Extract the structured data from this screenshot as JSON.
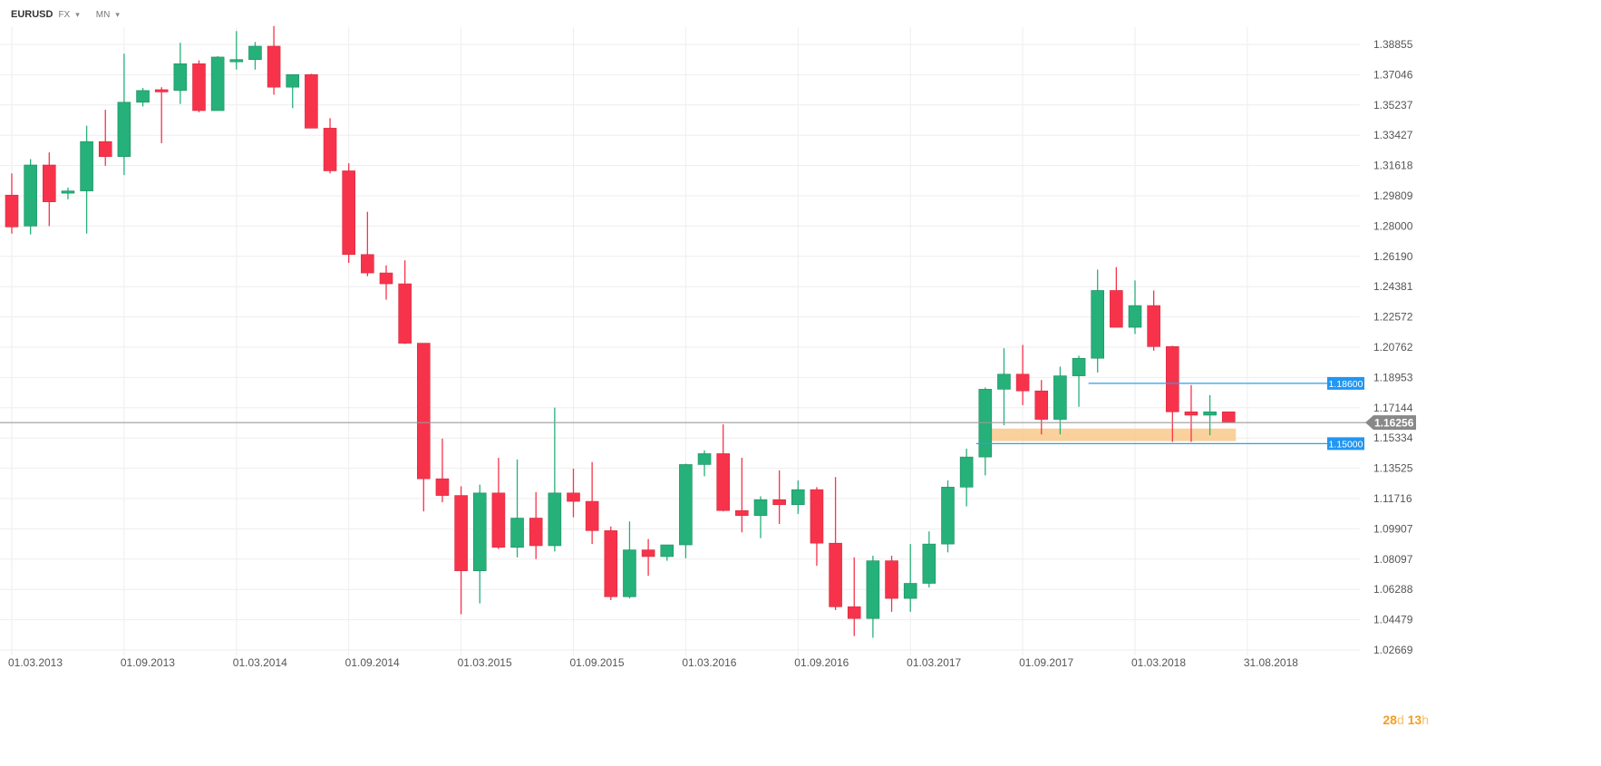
{
  "toolbar": {
    "symbol": "EURUSD",
    "market": "FX",
    "interval": "MN"
  },
  "countdown": {
    "days": "28",
    "days_unit": "d",
    "hours": "13",
    "hours_unit": "h"
  },
  "colors": {
    "up": "#26b07a",
    "down": "#f7334b",
    "grid": "#eeeeee",
    "level_line": "#2e9fe8",
    "level_label_bg": "#2196f3",
    "current_price_line": "#9a9a9a",
    "current_price_bg": "#888888",
    "zone_fill": "#f9c98b"
  },
  "chart_data": {
    "type": "candlestick",
    "ylim": [
      1.0267,
      1.4035
    ],
    "y_ticks": [
      "1.38855",
      "1.37046",
      "1.35237",
      "1.33427",
      "1.31618",
      "1.29809",
      "1.28000",
      "1.26190",
      "1.24381",
      "1.22572",
      "1.20762",
      "1.18953",
      "1.17144",
      "1.15334",
      "1.13525",
      "1.11716",
      "1.09907",
      "1.08097",
      "1.06288",
      "1.04479",
      "1.02669"
    ],
    "x_labels": [
      {
        "label": "01.03.2013",
        "index": 0
      },
      {
        "label": "01.09.2013",
        "index": 6
      },
      {
        "label": "01.03.2014",
        "index": 12
      },
      {
        "label": "01.09.2014",
        "index": 18
      },
      {
        "label": "01.03.2015",
        "index": 24
      },
      {
        "label": "01.09.2015",
        "index": 30
      },
      {
        "label": "01.03.2016",
        "index": 36
      },
      {
        "label": "01.09.2016",
        "index": 42
      },
      {
        "label": "01.03.2017",
        "index": 48
      },
      {
        "label": "01.09.2017",
        "index": 54
      },
      {
        "label": "01.03.2018",
        "index": 60
      },
      {
        "label": "31.08.2018",
        "index": 66
      }
    ],
    "ohlc": [
      [
        1.2985,
        1.3115,
        1.2755,
        1.2795
      ],
      [
        1.28,
        1.32,
        1.275,
        1.3165
      ],
      [
        1.3165,
        1.324,
        1.28,
        1.2945
      ],
      [
        1.3,
        1.303,
        1.296,
        1.301
      ],
      [
        1.301,
        1.34,
        1.2755,
        1.3305
      ],
      [
        1.3305,
        1.3495,
        1.316,
        1.3215
      ],
      [
        1.3215,
        1.383,
        1.3105,
        1.354
      ],
      [
        1.354,
        1.3625,
        1.3515,
        1.361
      ],
      [
        1.3615,
        1.363,
        1.3295,
        1.361
      ],
      [
        1.361,
        1.3895,
        1.353,
        1.377
      ],
      [
        1.377,
        1.379,
        1.348,
        1.349
      ],
      [
        1.349,
        1.3815,
        1.3495,
        1.381
      ],
      [
        1.379,
        1.3965,
        1.3735,
        1.3795
      ],
      [
        1.3795,
        1.39,
        1.3735,
        1.3875
      ],
      [
        1.3875,
        1.3995,
        1.3585,
        1.363
      ],
      [
        1.363,
        1.3705,
        1.3505,
        1.3705
      ],
      [
        1.3705,
        1.371,
        1.3385,
        1.3385
      ],
      [
        1.3385,
        1.3445,
        1.3115,
        1.313
      ],
      [
        1.313,
        1.3175,
        1.258,
        1.263
      ],
      [
        1.263,
        1.2885,
        1.25,
        1.252
      ],
      [
        1.252,
        1.2565,
        1.236,
        1.2455
      ],
      [
        1.2455,
        1.2595,
        1.2095,
        1.21
      ],
      [
        1.21,
        1.21,
        1.1095,
        1.129
      ],
      [
        1.129,
        1.153,
        1.115,
        1.119
      ],
      [
        1.119,
        1.1245,
        1.048,
        1.074
      ],
      [
        1.074,
        1.1255,
        1.0545,
        1.1205
      ],
      [
        1.1205,
        1.1415,
        1.087,
        1.088
      ],
      [
        1.088,
        1.1405,
        1.082,
        1.1055
      ],
      [
        1.1055,
        1.121,
        1.081,
        1.089
      ],
      [
        1.089,
        1.1715,
        1.0855,
        1.1205
      ],
      [
        1.1205,
        1.135,
        1.106,
        1.1155
      ],
      [
        1.1155,
        1.139,
        1.09,
        1.098
      ],
      [
        1.098,
        1.1005,
        1.0565,
        1.0585
      ],
      [
        1.0585,
        1.1035,
        1.0575,
        1.0865
      ],
      [
        1.0865,
        1.093,
        1.071,
        1.0825
      ],
      [
        1.0825,
        1.0895,
        1.08,
        1.0895
      ],
      [
        1.0895,
        1.138,
        1.0815,
        1.1375
      ],
      [
        1.1375,
        1.146,
        1.1305,
        1.144
      ],
      [
        1.144,
        1.1615,
        1.1095,
        1.11
      ],
      [
        1.11,
        1.1415,
        1.097,
        1.107
      ],
      [
        1.107,
        1.1185,
        1.0935,
        1.1165
      ],
      [
        1.1165,
        1.134,
        1.102,
        1.1135
      ],
      [
        1.1135,
        1.128,
        1.108,
        1.1225
      ],
      [
        1.1225,
        1.124,
        1.077,
        1.0905
      ],
      [
        1.0905,
        1.13,
        1.0505,
        1.0525
      ],
      [
        1.0525,
        1.082,
        1.035,
        1.0455
      ],
      [
        1.0455,
        1.083,
        1.034,
        1.08
      ],
      [
        1.08,
        1.083,
        1.0495,
        1.0575
      ],
      [
        1.0575,
        1.09,
        1.0495,
        1.0665
      ],
      [
        1.0665,
        1.0975,
        1.064,
        1.09
      ],
      [
        1.09,
        1.128,
        1.085,
        1.124
      ],
      [
        1.124,
        1.147,
        1.1125,
        1.142
      ],
      [
        1.142,
        1.1835,
        1.131,
        1.1825
      ],
      [
        1.1825,
        1.207,
        1.161,
        1.1915
      ],
      [
        1.1915,
        1.209,
        1.173,
        1.1815
      ],
      [
        1.1815,
        1.188,
        1.1555,
        1.1645
      ],
      [
        1.1645,
        1.196,
        1.1555,
        1.1905
      ],
      [
        1.1905,
        1.2025,
        1.172,
        1.201
      ],
      [
        1.201,
        1.254,
        1.1925,
        1.2415
      ],
      [
        1.2415,
        1.2555,
        1.2195,
        1.2195
      ],
      [
        1.2195,
        1.2475,
        1.2155,
        1.2325
      ],
      [
        1.2325,
        1.2415,
        1.2055,
        1.208
      ],
      [
        1.208,
        1.2085,
        1.151,
        1.169
      ],
      [
        1.169,
        1.185,
        1.151,
        1.167
      ],
      [
        1.167,
        1.179,
        1.155,
        1.169
      ],
      [
        1.169,
        1.169,
        1.1625,
        1.1625
      ]
    ],
    "horizontal_lines": [
      {
        "price": 1.186,
        "label": "1.18600",
        "from_index": 58
      },
      {
        "price": 1.15,
        "label": "1.15000",
        "from_index": 52
      }
    ],
    "zone": {
      "from_price": 1.1515,
      "to_price": 1.159,
      "from_index": 52,
      "to_index": 65
    },
    "current_price": {
      "value": 1.16256,
      "label": "1.16256"
    }
  }
}
